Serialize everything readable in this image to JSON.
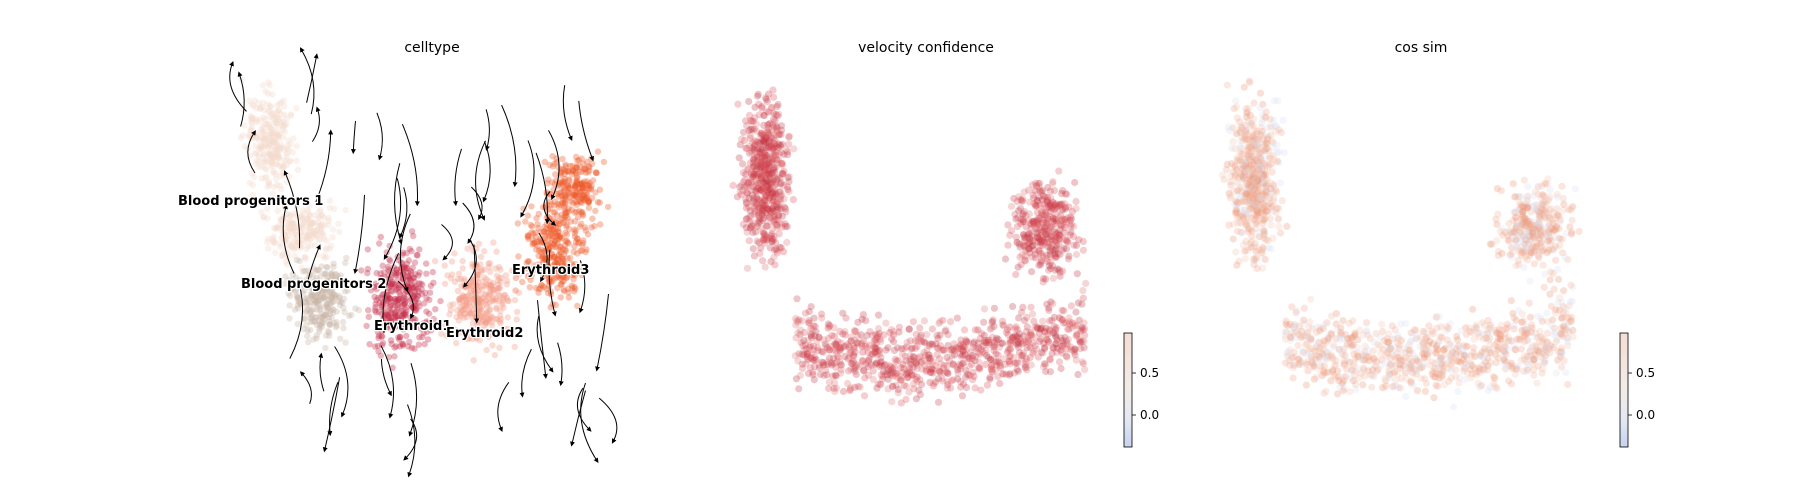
{
  "chart_data": [
    {
      "type": "scatter",
      "title": "celltype",
      "cluster_labels": [
        "Blood progenitors 1",
        "Blood progenitors 2",
        "Erythroid1",
        "Erythroid2",
        "Erythroid3"
      ],
      "cluster_colors": {
        "Blood progenitors 1": "#f4d9cc",
        "Blood progenitors 2": "#c9b5a6",
        "Erythroid1": "#c72c48",
        "Erythroid2": "#f39a86",
        "Erythroid3": "#ef5a28"
      },
      "overlay": "velocity streamlines",
      "legend": "on data"
    },
    {
      "type": "scatter",
      "title": "velocity confidence",
      "colormap": "coolwarm",
      "colorbar_ticks": [
        "0.5",
        "0.0"
      ],
      "colorbar_range": [
        -0.35,
        0.95
      ],
      "legend": "colorbar right"
    },
    {
      "type": "scatter",
      "title": "cos sim",
      "colormap": "coolwarm",
      "colorbar_ticks": [
        "0.5",
        "0.0"
      ],
      "colorbar_range": [
        -0.35,
        0.95
      ],
      "legend": "colorbar right"
    }
  ]
}
